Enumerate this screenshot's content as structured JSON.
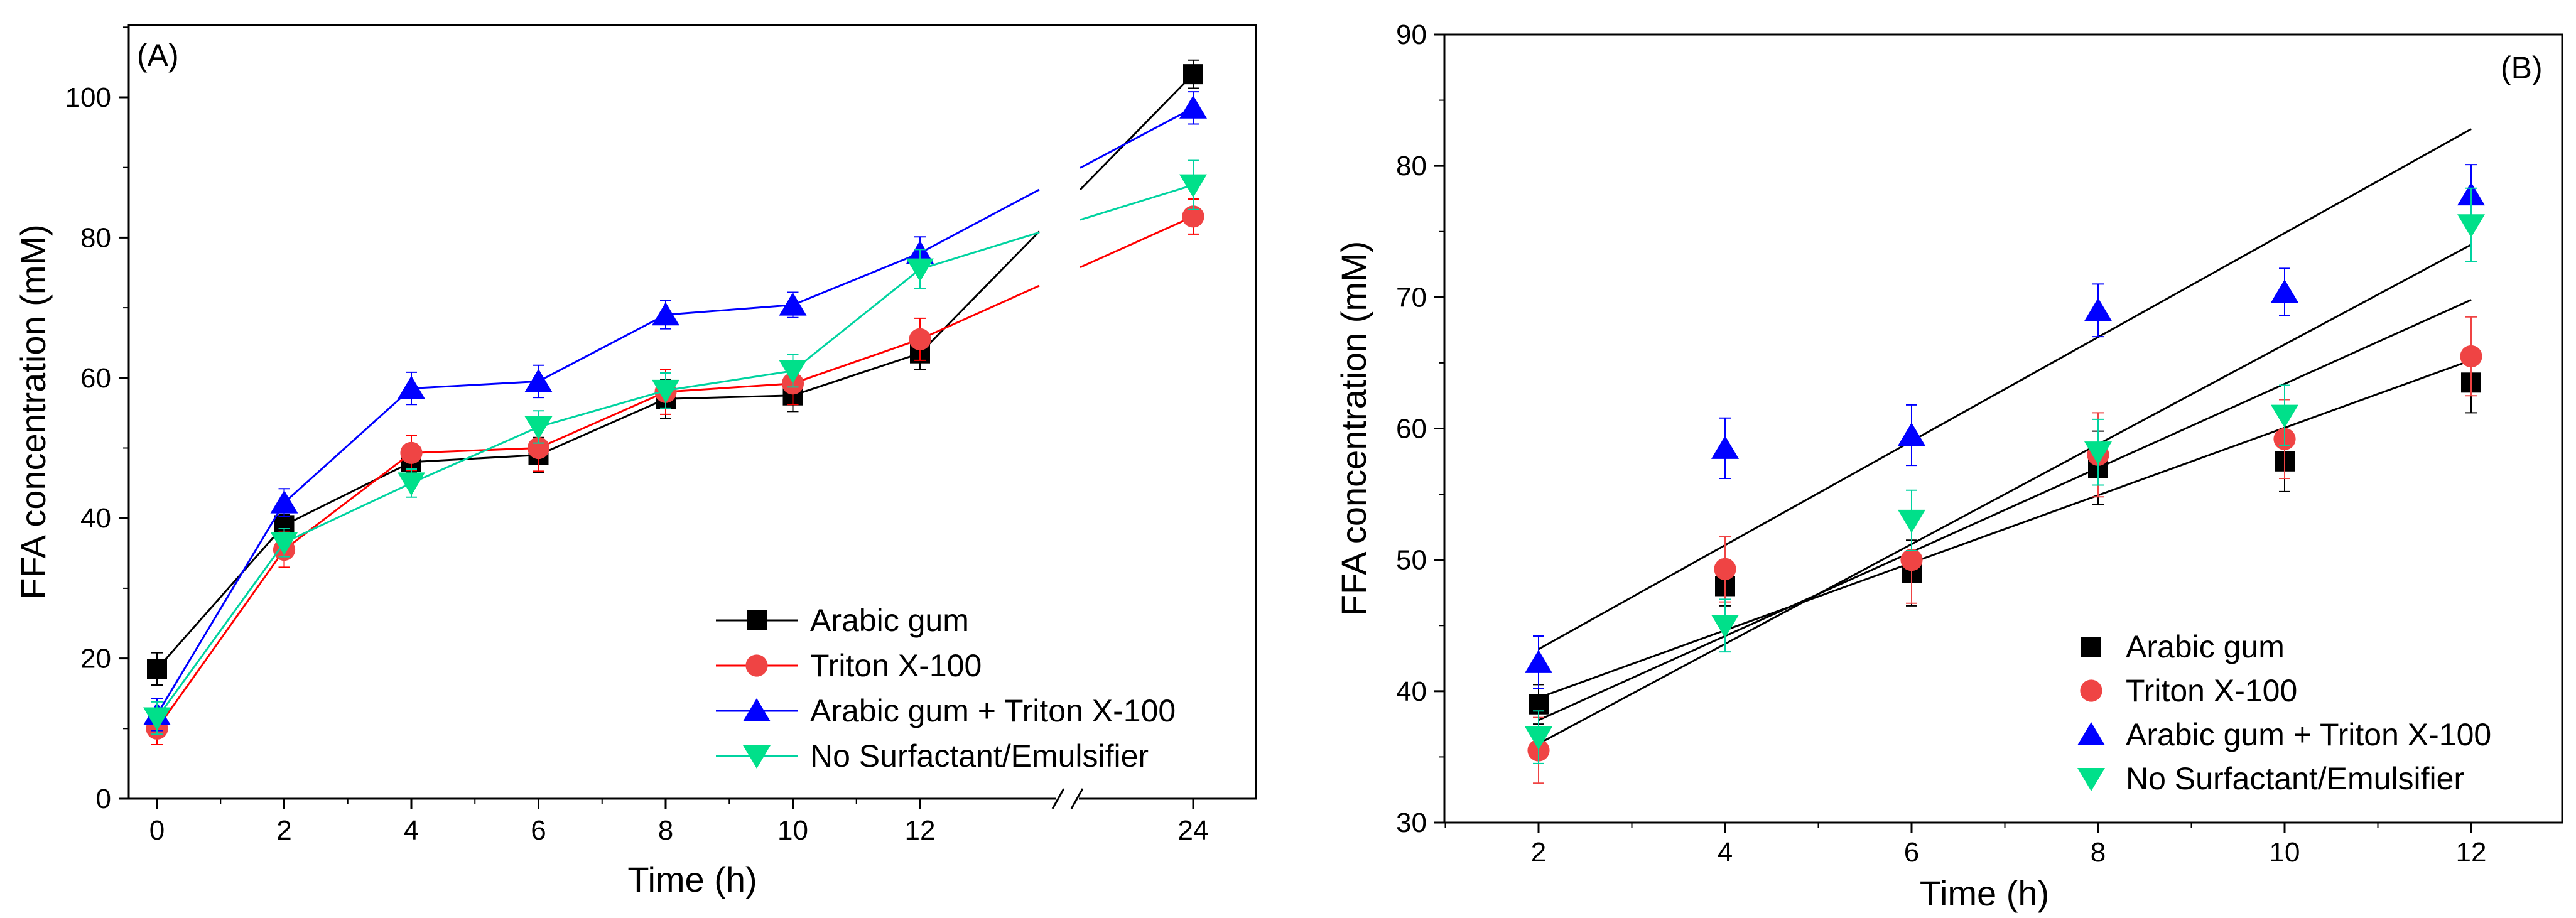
{
  "chart_data": [
    {
      "type": "line",
      "panel_label": "(A)",
      "xlabel": "Time (h)",
      "ylabel": "FFA concentration (mM)",
      "ylim": [
        0,
        110
      ],
      "x_ticks": [
        "0",
        "2",
        "4",
        "6",
        "8",
        "10",
        "12",
        "24"
      ],
      "y_ticks": [
        "0",
        "20",
        "40",
        "60",
        "80",
        "100"
      ],
      "axis_break": "between 12 and 24",
      "legend_position": "bottom-right",
      "x": [
        0,
        2,
        4,
        6,
        8,
        10,
        12,
        24
      ],
      "series": [
        {
          "name": "Arabic gum",
          "marker": "square",
          "color": "#000000",
          "values": [
            18.5,
            39,
            48,
            49,
            57,
            57.5,
            63.5,
            103.3
          ],
          "errors": [
            2.3,
            1.5,
            1.5,
            2.5,
            2.8,
            2.3,
            2.3,
            2.0
          ]
        },
        {
          "name": "Triton X-100",
          "marker": "circle",
          "color": "#ff0000",
          "values": [
            10,
            35.5,
            49.3,
            50,
            58,
            59.2,
            65.5,
            83
          ],
          "errors": [
            2.3,
            2.5,
            2.5,
            3.3,
            3.2,
            3.0,
            3.0,
            2.5
          ]
        },
        {
          "name": "Arabic gum + Triton X-100",
          "marker": "triangle-up",
          "color": "#0000ff",
          "values": [
            12,
            42.2,
            58.5,
            59.5,
            69,
            70.4,
            77.8,
            98.5
          ],
          "errors": [
            2.3,
            2.0,
            2.3,
            2.3,
            2.0,
            1.8,
            2.3,
            2.3
          ]
        },
        {
          "name": "No Surfactant/Emulsifier",
          "marker": "triangle-down",
          "color": "#00e08a",
          "values": [
            11.5,
            36.5,
            45,
            53,
            58.2,
            61,
            75.5,
            87.5
          ],
          "errors": [
            2.3,
            2.0,
            2.0,
            2.3,
            2.5,
            2.3,
            2.8,
            3.5
          ]
        }
      ]
    },
    {
      "type": "scatter",
      "panel_label": "(B)",
      "xlabel": "Time (h)",
      "ylabel": "FFA concentration (mM)",
      "xlim": [
        1,
        13
      ],
      "ylim": [
        30,
        90
      ],
      "x_ticks": [
        "2",
        "4",
        "6",
        "8",
        "10",
        "12"
      ],
      "y_ticks": [
        "30",
        "40",
        "50",
        "60",
        "70",
        "80",
        "90"
      ],
      "legend_position": "bottom-right",
      "x": [
        2,
        4,
        6,
        8,
        10,
        12
      ],
      "series": [
        {
          "name": "Arabic gum",
          "marker": "square",
          "color": "#000000",
          "values": [
            39,
            48,
            49,
            57,
            57.5,
            63.5
          ],
          "errors": [
            1.5,
            1.5,
            2.5,
            2.8,
            2.3,
            2.3
          ],
          "fit": {
            "x0": 2,
            "y0": 39.5,
            "x1": 12,
            "y1": 65.2
          }
        },
        {
          "name": "Triton X-100",
          "marker": "circle",
          "color": "#ef4444",
          "values": [
            35.5,
            49.3,
            50,
            58,
            59.2,
            65.5
          ],
          "errors": [
            2.5,
            2.5,
            3.3,
            3.2,
            3.0,
            3.0
          ],
          "fit": {
            "x0": 2,
            "y0": 37.8,
            "x1": 12,
            "y1": 69.8
          }
        },
        {
          "name": "Arabic gum + Triton X-100",
          "marker": "triangle-up",
          "color": "#0000ff",
          "values": [
            42.2,
            58.5,
            59.5,
            69,
            70.4,
            77.8
          ],
          "errors": [
            2.0,
            2.3,
            2.3,
            2.0,
            1.8,
            2.3
          ],
          "fit": {
            "x0": 2,
            "y0": 43.2,
            "x1": 12,
            "y1": 82.8
          }
        },
        {
          "name": "No Surfactant/Emulsifier",
          "marker": "triangle-down",
          "color": "#00e08a",
          "values": [
            36.5,
            45,
            53,
            58.2,
            61,
            75.5
          ],
          "errors": [
            2.0,
            2.0,
            2.3,
            2.5,
            2.3,
            2.8
          ],
          "fit": {
            "x0": 2,
            "y0": 36.0,
            "x1": 12,
            "y1": 74.0
          }
        }
      ]
    }
  ]
}
